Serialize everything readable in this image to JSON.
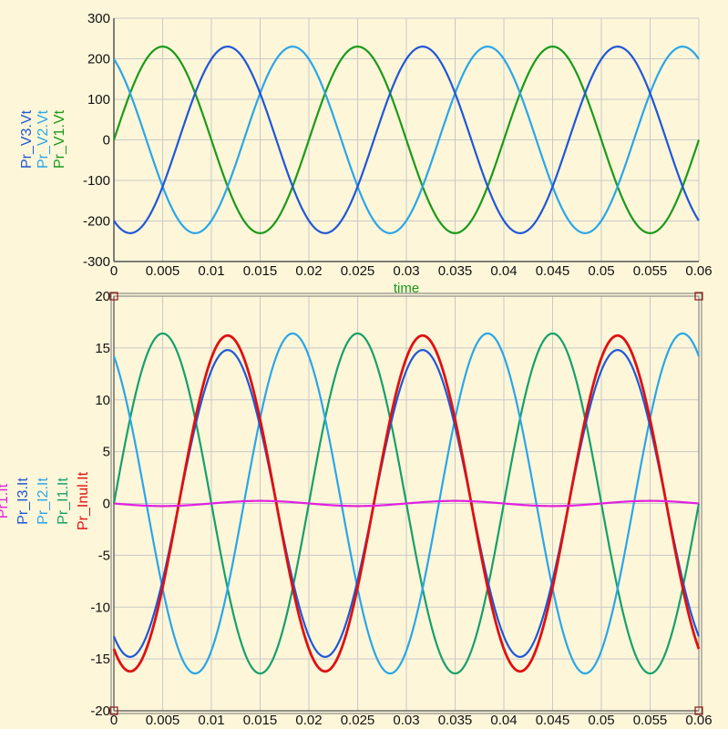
{
  "chart_data": [
    {
      "type": "line",
      "xlim": [
        0,
        0.06
      ],
      "ylim": [
        -300,
        300
      ],
      "grid": true,
      "x_ticks": [
        "0",
        "0.005",
        "0.01",
        "0.015",
        "0.02",
        "0.025",
        "0.03",
        "0.035",
        "0.04",
        "0.045",
        "0.05",
        "0.055",
        "0.06"
      ],
      "y_ticks": [
        "300",
        "200",
        "100",
        "0",
        "-100",
        "-200",
        "-300"
      ],
      "x_labels": [
        {
          "text": "time",
          "color": "#1a9a1a"
        },
        {
          "text": "time",
          "color": "#2aa6e8"
        },
        {
          "text": "time",
          "color": "#1f57d6"
        }
      ],
      "y_labels": [
        {
          "text": "Pr_V3.Vt",
          "color": "#1f57d6"
        },
        {
          "text": "Pr_V2.Vt",
          "color": "#2aa6e8"
        },
        {
          "text": "Pr_V1.Vt",
          "color": "#1a9a1a"
        }
      ],
      "series": [
        {
          "name": "Pr_V1.Vt",
          "color": "#1a9a1a",
          "amplitude": 230,
          "frequency_hz": 50,
          "phase_deg": 0
        },
        {
          "name": "Pr_V2.Vt",
          "color": "#2aa6e8",
          "amplitude": 230,
          "frequency_hz": 50,
          "phase_deg": 120
        },
        {
          "name": "Pr_V3.Vt",
          "color": "#1f57d6",
          "amplitude": 230,
          "frequency_hz": 50,
          "phase_deg": -120
        }
      ]
    },
    {
      "type": "line",
      "xlim": [
        0,
        0.06
      ],
      "ylim": [
        -20,
        20
      ],
      "grid": true,
      "x_ticks": [
        "0",
        "0.005",
        "0.01",
        "0.015",
        "0.02",
        "0.025",
        "0.03",
        "0.035",
        "0.04",
        "0.045",
        "0.05",
        "0.055",
        "0.06"
      ],
      "y_ticks": [
        "20",
        "15",
        "10",
        "5",
        "0",
        "-5",
        "-10",
        "-15",
        "-20"
      ],
      "y_labels": [
        {
          "text": "Pr1.It",
          "color": "#e020e0"
        },
        {
          "text": "Pr_I3.It",
          "color": "#1f57d6"
        },
        {
          "text": "Pr_I2.It",
          "color": "#2aa6e8"
        },
        {
          "text": "Pr_I1.It",
          "color": "#16a06a"
        },
        {
          "text": "Pr_Inul.It",
          "color": "#e01010"
        }
      ],
      "series": [
        {
          "name": "Pr_I1.It",
          "color": "#16a06a",
          "amplitude": 16.4,
          "frequency_hz": 50,
          "phase_deg": 0
        },
        {
          "name": "Pr_I2.It",
          "color": "#2aa6e8",
          "amplitude": 16.4,
          "frequency_hz": 50,
          "phase_deg": 120
        },
        {
          "name": "Pr_I3.It",
          "color": "#1f57d6",
          "amplitude": 14.8,
          "frequency_hz": 50,
          "phase_deg": 240
        },
        {
          "name": "Pr_Inul.It",
          "color": "#e01010",
          "amplitude": 16.2,
          "frequency_hz": 50,
          "phase_deg": 240
        },
        {
          "name": "Pr1.It",
          "color": "#e020e0",
          "amplitude": 0.25,
          "frequency_hz": 50,
          "phase_deg": 180,
          "offset": 0
        }
      ]
    }
  ]
}
